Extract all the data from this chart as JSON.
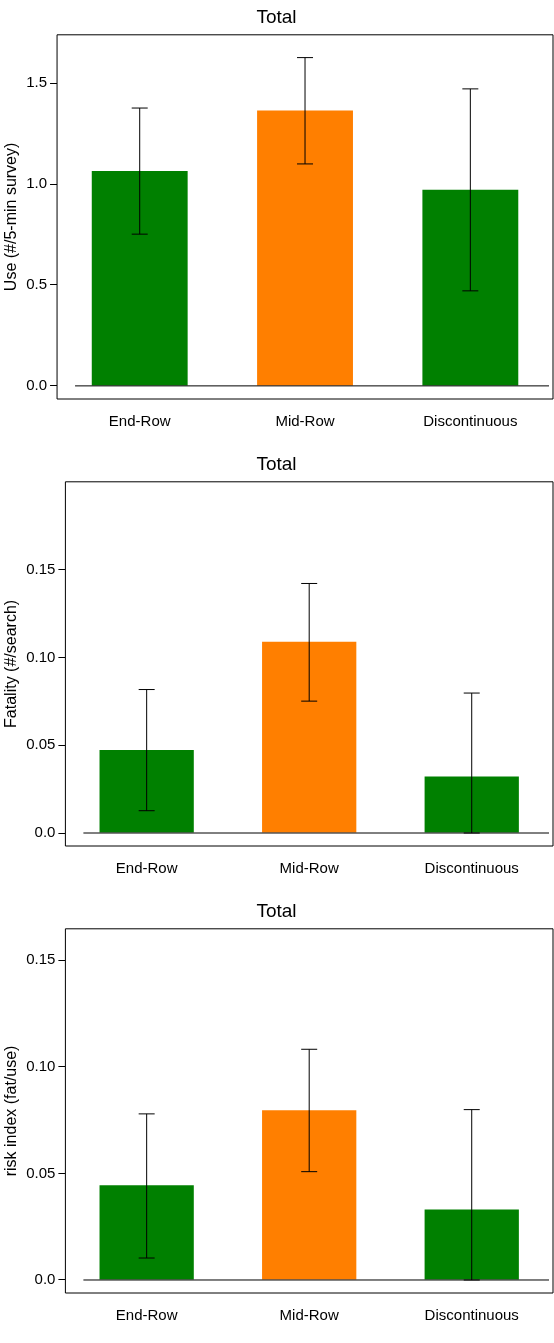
{
  "chart_data": [
    {
      "type": "bar",
      "title": "Total",
      "ylabel": "Use (#/5-min survey)",
      "categories": [
        "End-Row",
        "Mid-Row",
        "Discontinuous"
      ],
      "values": [
        1.065,
        1.365,
        0.972
      ],
      "colors": [
        "#008000",
        "#ff7f00",
        "#008000"
      ],
      "errors": [
        [
          0.752,
          1.377
        ],
        [
          1.1,
          1.627
        ],
        [
          0.471,
          1.472
        ]
      ],
      "ylim": [
        -0.065,
        1.74
      ],
      "yticks": [
        {
          "value": 0,
          "label": "0.0"
        },
        {
          "value": 0.5,
          "label": "0.5"
        },
        {
          "value": 1,
          "label": "1.0"
        },
        {
          "value": 1.5,
          "label": "1.5"
        }
      ],
      "ref_lines": [
        {
          "axis": "y",
          "value": 0,
          "color": "#000000"
        }
      ]
    },
    {
      "type": "bar",
      "title": "Total",
      "ylabel": "Fatality (#/search)",
      "categories": [
        "End-Row",
        "Mid-Row",
        "Discontinuous"
      ],
      "values": [
        0.0473,
        0.1089,
        0.0322
      ],
      "colors": [
        "#008000",
        "#ff7f00",
        "#008000"
      ],
      "errors": [
        [
          0.0127,
          0.0817
        ],
        [
          0.0751,
          0.1421
        ],
        [
          0,
          0.0797
        ]
      ],
      "ylim": [
        -0.0074,
        0.2
      ],
      "yticks": [
        {
          "value": 0,
          "label": "0.0"
        },
        {
          "value": 0.05,
          "label": "0.05"
        },
        {
          "value": 0.1,
          "label": "0.10"
        },
        {
          "value": 0.15,
          "label": "0.15"
        }
      ],
      "ref_lines": [
        {
          "axis": "y",
          "value": 0,
          "color": "#000000"
        }
      ]
    },
    {
      "type": "bar",
      "title": "Total",
      "ylabel": "risk index (fat/use)",
      "categories": [
        "End-Row",
        "Mid-Row",
        "Discontinuous"
      ],
      "values": [
        0.0444,
        0.0796,
        0.0331
      ],
      "colors": [
        "#008000",
        "#ff7f00",
        "#008000"
      ],
      "errors": [
        [
          0.0103,
          0.0779
        ],
        [
          0.0508,
          0.1082
        ],
        [
          0,
          0.0799
        ]
      ],
      "ylim": [
        -0.0061,
        0.1647
      ],
      "yticks": [
        {
          "value": 0,
          "label": "0.0"
        },
        {
          "value": 0.05,
          "label": "0.05"
        },
        {
          "value": 0.1,
          "label": "0.10"
        },
        {
          "value": 0.15,
          "label": "0.15"
        }
      ],
      "ref_lines": [
        {
          "axis": "y",
          "value": 0,
          "color": "#000000"
        }
      ]
    }
  ]
}
